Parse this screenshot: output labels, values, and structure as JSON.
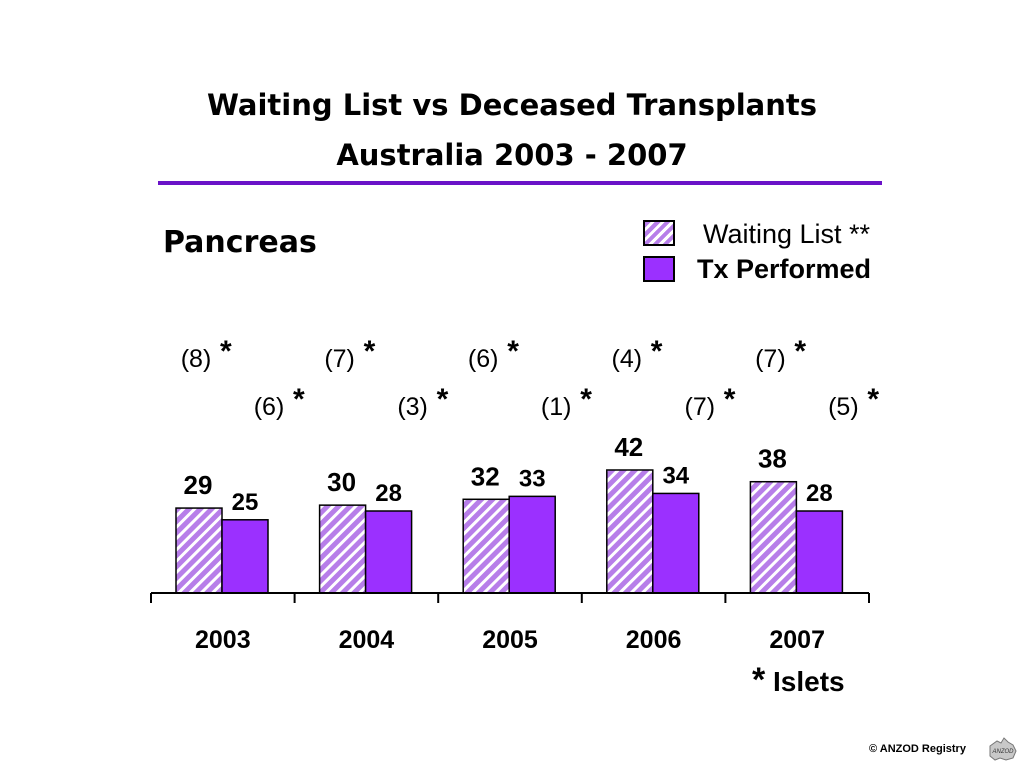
{
  "header": {
    "title_line1": "Waiting List vs Deceased Transplants",
    "title_line2": "Australia  2003 - 2007",
    "subtitle": "Pancreas"
  },
  "legend": [
    {
      "label": "Waiting List **",
      "style": "hatched",
      "color": "#b77ee9"
    },
    {
      "label": "Tx Performed",
      "style": "solid",
      "color": "#9b30ff"
    }
  ],
  "footnote": {
    "star": "*",
    "text": "Islets"
  },
  "copyright": "© ANZOD Registry",
  "logo_text": "ANZOD",
  "colors": {
    "accent": "#6a12c8",
    "waiting": "#b77ee9",
    "tx": "#9b30ff"
  },
  "chart_data": {
    "type": "bar",
    "categories": [
      "2003",
      "2004",
      "2005",
      "2006",
      "2007"
    ],
    "series": [
      {
        "name": "Waiting List **",
        "values": [
          29,
          30,
          32,
          42,
          38
        ],
        "islets": [
          "(8)",
          "(7)",
          "(6)",
          "(4)",
          "(7)"
        ]
      },
      {
        "name": "Tx Performed",
        "values": [
          25,
          28,
          33,
          34,
          28
        ],
        "islets": [
          "(6)",
          "(3)",
          "(1)",
          "(7)",
          "(5)"
        ]
      }
    ],
    "islet_marker": "*",
    "ylim": [
      0,
      42
    ],
    "grid": false,
    "legend_position": "top-right"
  }
}
